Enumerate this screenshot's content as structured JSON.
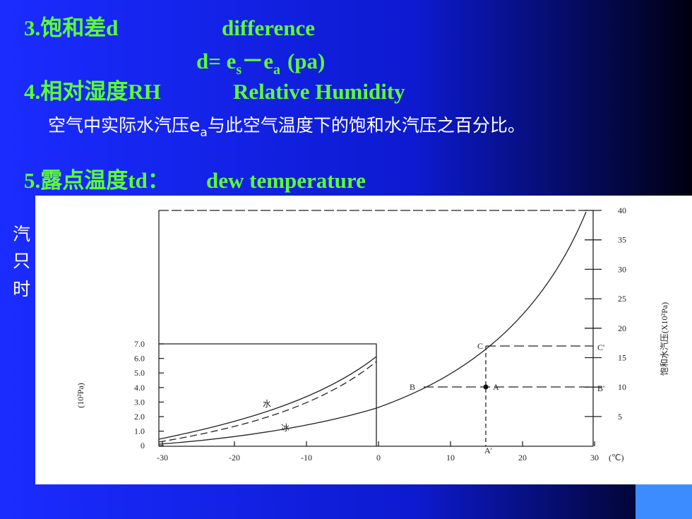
{
  "heading3": {
    "title": "3.饱和差d",
    "english": "difference"
  },
  "formula": {
    "parts": [
      "d= e",
      "s",
      "－e",
      "a",
      "(pa)"
    ]
  },
  "heading4": {
    "title": "4.相对湿度RH",
    "english": "Relative Humidity"
  },
  "definition4": {
    "parts": [
      "空气中实际水汽压e",
      "a",
      "与此空气温度下的饱和水汽压之百分比。"
    ]
  },
  "heading5": {
    "title": "5.露点温度td：",
    "english": "dew  temperature"
  },
  "hidden_fragments": [
    "汽",
    "只",
    "时"
  ],
  "figure": {
    "left_ticks": [
      "7.0",
      "6.0",
      "5.0",
      "4.0",
      "3.0",
      "2.0",
      "1.0",
      "0"
    ],
    "right_ticks": [
      "40",
      "35",
      "30",
      "25",
      "20",
      "15",
      "10",
      "5"
    ],
    "x_ticks": [
      "-30",
      "-20",
      "-10",
      "0",
      "10",
      "20",
      "30"
    ],
    "x_unit": "(℃)",
    "left_axis_label": "(10²Pa)",
    "right_axis_label": "饱和水汽压(X10²Pa)",
    "curve_labels": [
      "水",
      "冰"
    ],
    "points": [
      "C",
      "C'",
      "B",
      "A",
      "B'",
      "A'"
    ]
  }
}
